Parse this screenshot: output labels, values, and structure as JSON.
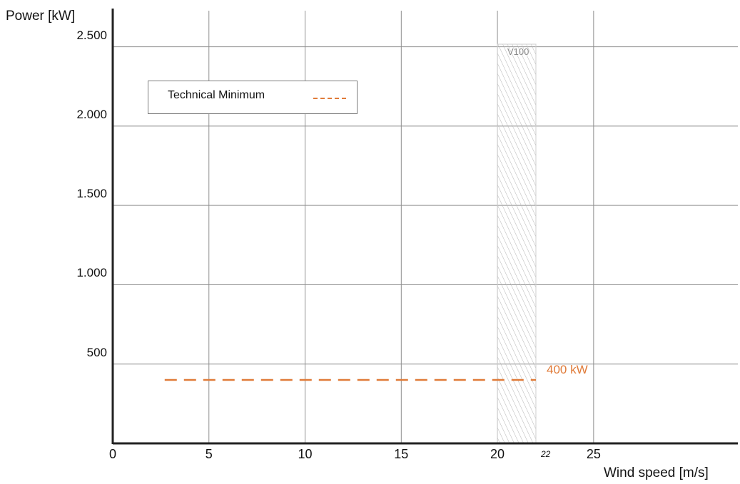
{
  "chart_data": {
    "type": "line",
    "ylabel": "Power [kW]",
    "xlabel": "Wind speed [m/s]",
    "xlim": [
      0,
      32.5
    ],
    "ylim": [
      0,
      2750
    ],
    "x_ticks": [
      0,
      5,
      10,
      15,
      20,
      25
    ],
    "x_tick_labels": [
      "0",
      "5",
      "10",
      "15",
      "20",
      "25"
    ],
    "y_ticks": [
      500,
      1000,
      1500,
      2000,
      2500
    ],
    "y_tick_labels": [
      "500",
      "1.000",
      "1.500",
      "2.000",
      "2.500"
    ],
    "grid": true,
    "legend": {
      "position": "top-left",
      "entries": [
        "Technical Minimum"
      ]
    },
    "series": [
      {
        "name": "Technical Minimum",
        "style": "dashed",
        "color": "#e07b39",
        "x": [
          2.7,
          22
        ],
        "y": [
          400,
          400
        ]
      }
    ],
    "shaded_region": {
      "label": "V100",
      "x_range": [
        20,
        22
      ],
      "pattern": "hatched"
    },
    "annotations": [
      {
        "text": "400 kW",
        "x": 22.3,
        "y": 400,
        "color": "#e07b39"
      },
      {
        "text": "22",
        "x": 22,
        "y": 0,
        "style": "italic"
      }
    ]
  }
}
